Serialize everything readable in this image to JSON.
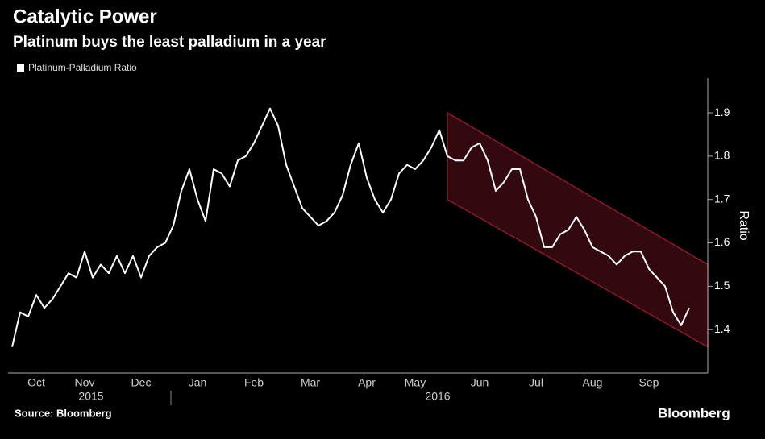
{
  "chart_data": {
    "type": "line",
    "title": "Catalytic Power",
    "subtitle": "Platinum buys the least palladium in a year",
    "source": "Source: Bloomberg",
    "watermark": "Bloomberg",
    "y_label": "Ratio",
    "years": [
      "2015",
      "2016"
    ],
    "categories": [
      null,
      null,
      null,
      "Oct",
      null,
      null,
      null,
      null,
      null,
      "Nov",
      null,
      null,
      null,
      null,
      null,
      null,
      "Dec",
      null,
      null,
      null,
      null,
      null,
      null,
      "Jan",
      null,
      null,
      null,
      null,
      null,
      null,
      "Feb",
      null,
      null,
      null,
      null,
      null,
      null,
      "Mar",
      null,
      null,
      null,
      null,
      null,
      null,
      "Apr",
      null,
      null,
      null,
      null,
      null,
      "May",
      null,
      null,
      null,
      null,
      null,
      null,
      null,
      "Jun",
      null,
      null,
      null,
      null,
      null,
      null,
      "Jul",
      null,
      null,
      null,
      null,
      null,
      null,
      "Aug",
      null,
      null,
      null,
      null,
      null,
      null,
      "Sep",
      null,
      null,
      null,
      null,
      null
    ],
    "series": [
      {
        "name": "Platinum-Palladium Ratio",
        "color": "#ffffff",
        "values": [
          1.36,
          1.44,
          1.43,
          1.48,
          1.45,
          1.47,
          1.5,
          1.53,
          1.52,
          1.58,
          1.52,
          1.55,
          1.53,
          1.57,
          1.53,
          1.57,
          1.52,
          1.57,
          1.59,
          1.6,
          1.64,
          1.72,
          1.77,
          1.7,
          1.65,
          1.77,
          1.76,
          1.73,
          1.79,
          1.8,
          1.83,
          1.87,
          1.91,
          1.87,
          1.78,
          1.73,
          1.68,
          1.66,
          1.64,
          1.65,
          1.67,
          1.71,
          1.78,
          1.83,
          1.75,
          1.7,
          1.67,
          1.7,
          1.76,
          1.78,
          1.77,
          1.79,
          1.82,
          1.86,
          1.8,
          1.79,
          1.79,
          1.82,
          1.83,
          1.79,
          1.72,
          1.74,
          1.77,
          1.77,
          1.7,
          1.66,
          1.59,
          1.59,
          1.62,
          1.63,
          1.66,
          1.63,
          1.59,
          1.58,
          1.57,
          1.55,
          1.57,
          1.58,
          1.58,
          1.54,
          1.52,
          1.5,
          1.44,
          1.41,
          1.45
        ]
      }
    ],
    "channel": {
      "start": 54,
      "upper": [
        1.9,
        1.55
      ],
      "lower": [
        1.7,
        1.36
      ],
      "color": "#8b1a2b"
    },
    "ylim": [
      1.3,
      1.98
    ],
    "yticks": [
      1.4,
      1.5,
      1.6,
      1.7,
      1.8,
      1.9
    ],
    "background": "#000000"
  }
}
